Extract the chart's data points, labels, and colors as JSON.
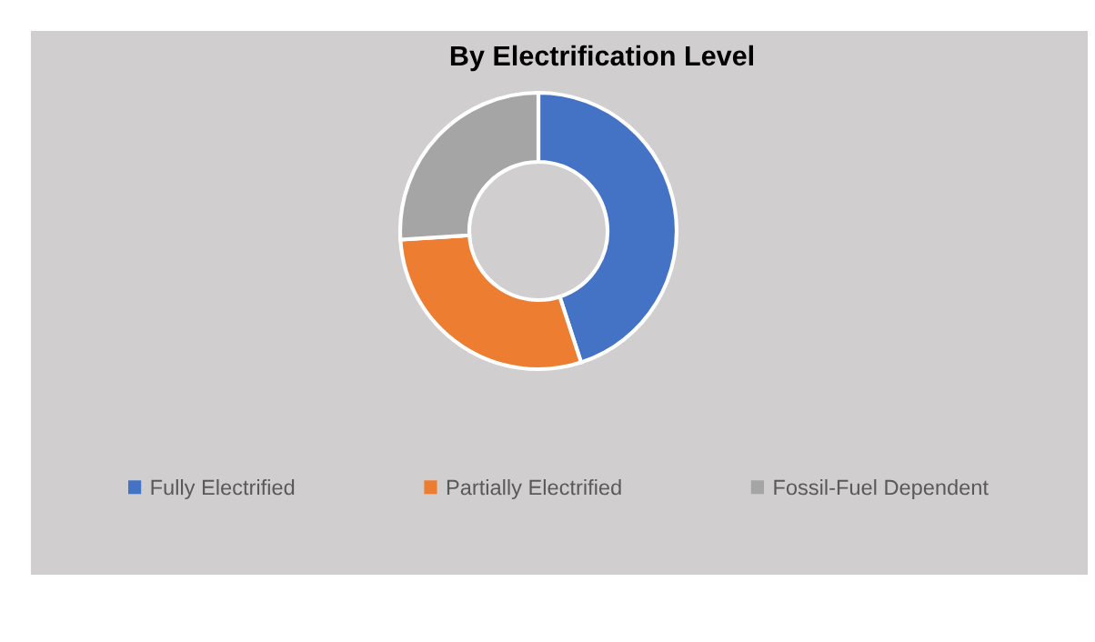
{
  "chart_data": {
    "type": "donut",
    "title": "By Electrification Level",
    "categories": [
      "Fully Electrified",
      "Partially Electrified",
      "Fossil-Fuel Dependent"
    ],
    "values": [
      45,
      29,
      26
    ],
    "colors": [
      "#4472c4",
      "#ed7d31",
      "#a5a5a5"
    ],
    "legend": "bottom"
  }
}
